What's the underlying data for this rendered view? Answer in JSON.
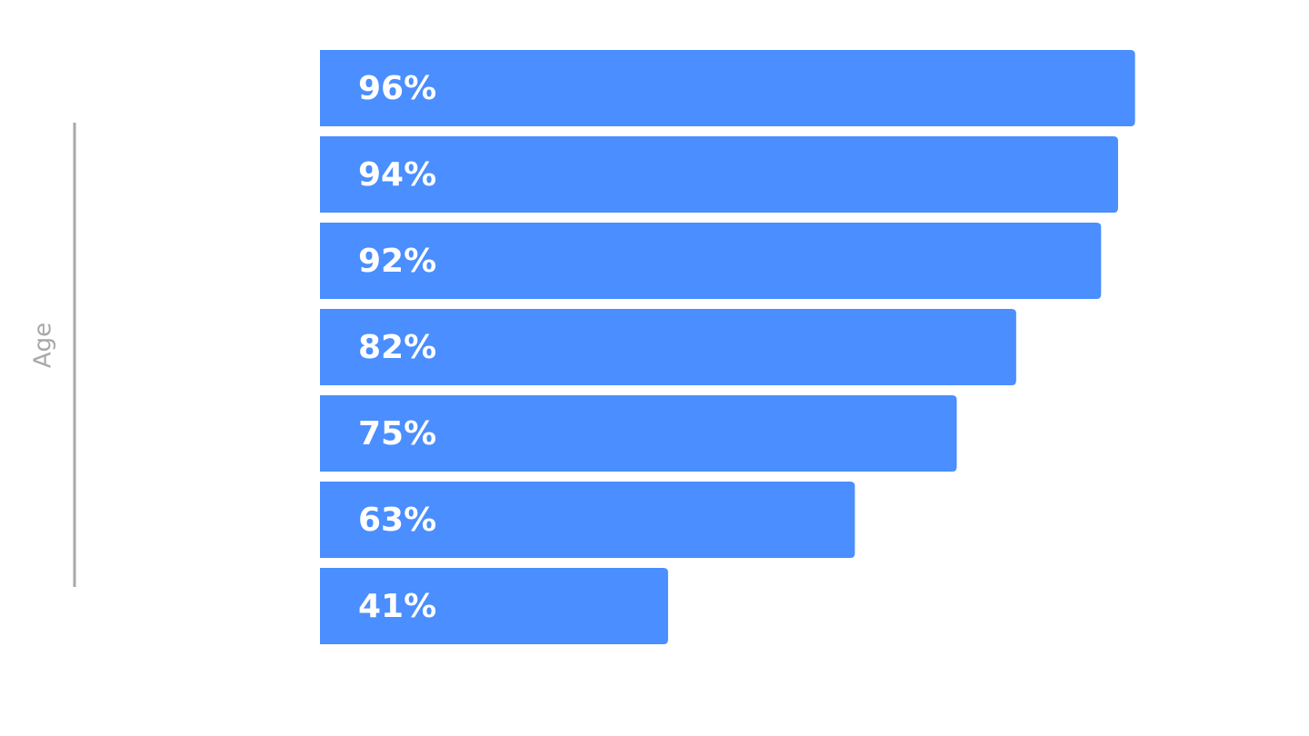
{
  "chart_data": {
    "type": "bar",
    "orientation": "horizontal",
    "y_label": "Age",
    "categories": [
      null,
      null,
      null,
      null,
      null,
      null,
      null
    ],
    "values": [
      96,
      94,
      92,
      82,
      75,
      63,
      41
    ],
    "value_labels": [
      "96%",
      "94%",
      "92%",
      "82%",
      "75%",
      "63%",
      "41%"
    ],
    "color": "#4a8eff",
    "xlim": [
      0,
      100
    ]
  }
}
